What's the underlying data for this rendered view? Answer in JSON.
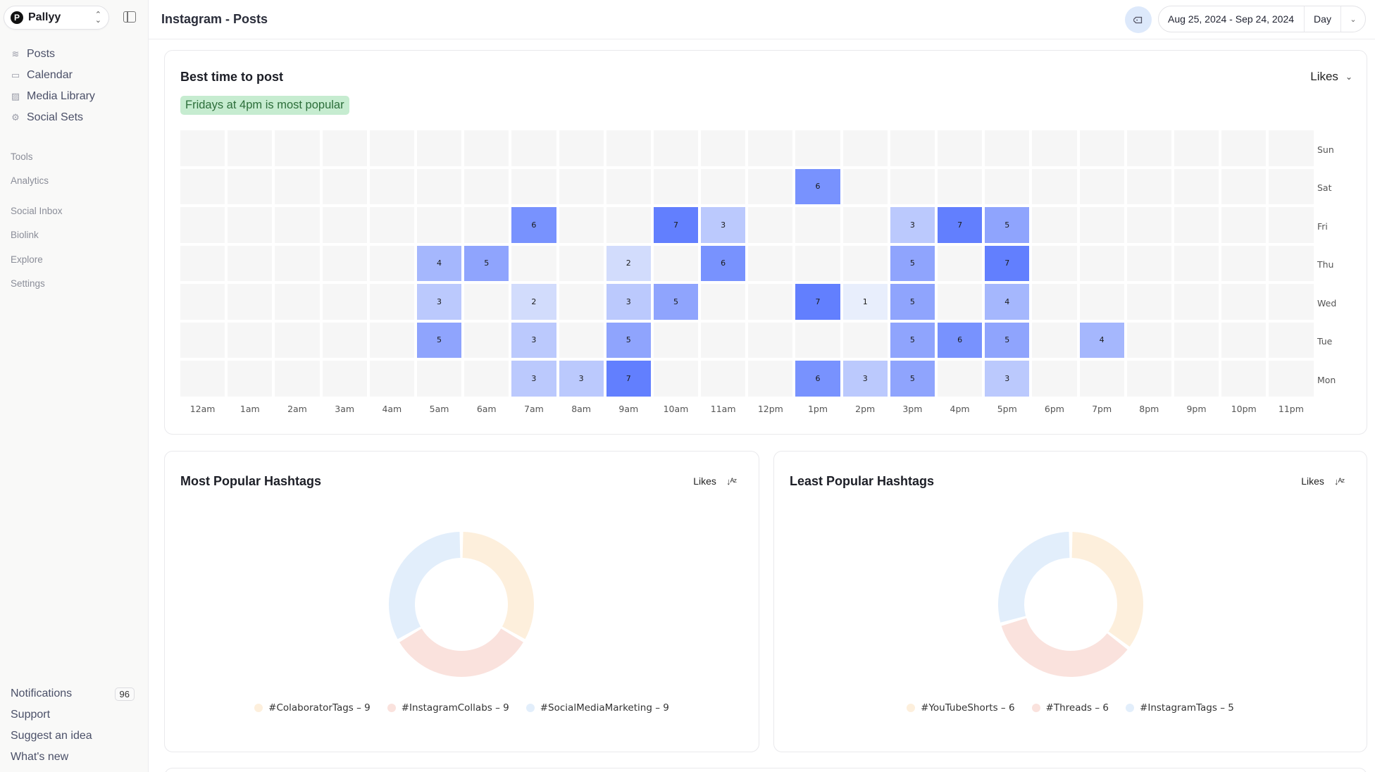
{
  "sidebar": {
    "workspace": {
      "logo": "P",
      "name": "Pallyy"
    },
    "main_nav": [
      {
        "label": "Posts",
        "icon": "database-icon",
        "glyph": "≋"
      },
      {
        "label": "Calendar",
        "icon": "calendar-icon",
        "glyph": "▭"
      },
      {
        "label": "Media Library",
        "icon": "image-icon",
        "glyph": "▨"
      },
      {
        "label": "Social Sets",
        "icon": "gear-icon",
        "glyph": "⚙"
      }
    ],
    "sections": [
      "Tools",
      "Analytics",
      "Social Inbox",
      "Biolink",
      "Explore",
      "Settings"
    ],
    "bottom": {
      "notifications": {
        "label": "Notifications",
        "count": "96"
      },
      "support": "Support",
      "suggest": "Suggest an idea",
      "whats_new": "What's new"
    }
  },
  "header": {
    "title": "Instagram - Posts",
    "date_range": "Aug 25, 2024 - Sep 24, 2024",
    "granularity": "Day"
  },
  "best_time": {
    "title": "Best time to post",
    "metric": "Likes",
    "highlight": "Fridays at 4pm is most popular"
  },
  "chart_data": [
    {
      "type": "heatmap",
      "title": "Best time to post",
      "metric": "Likes",
      "x": [
        "12am",
        "1am",
        "2am",
        "3am",
        "4am",
        "5am",
        "6am",
        "7am",
        "8am",
        "9am",
        "10am",
        "11am",
        "12pm",
        "1pm",
        "2pm",
        "3pm",
        "4pm",
        "5pm",
        "6pm",
        "7pm",
        "8pm",
        "9pm",
        "10pm",
        "11pm"
      ],
      "y": [
        "Sun",
        "Sat",
        "Fri",
        "Thu",
        "Wed",
        "Tue",
        "Mon"
      ],
      "values": [
        [
          null,
          null,
          null,
          null,
          null,
          null,
          null,
          null,
          null,
          null,
          null,
          null,
          null,
          null,
          null,
          null,
          null,
          null,
          null,
          null,
          null,
          null,
          null,
          null
        ],
        [
          null,
          null,
          null,
          null,
          null,
          null,
          null,
          null,
          null,
          null,
          null,
          null,
          null,
          6,
          null,
          null,
          null,
          null,
          null,
          null,
          null,
          null,
          null,
          null
        ],
        [
          null,
          null,
          null,
          null,
          null,
          null,
          null,
          6,
          null,
          null,
          7,
          3,
          null,
          null,
          null,
          3,
          7,
          5,
          null,
          null,
          null,
          null,
          null,
          null
        ],
        [
          null,
          null,
          null,
          null,
          null,
          4,
          5,
          null,
          null,
          2,
          null,
          6,
          null,
          null,
          null,
          5,
          null,
          7,
          null,
          null,
          null,
          null,
          null,
          null
        ],
        [
          null,
          null,
          null,
          null,
          null,
          3,
          null,
          2,
          null,
          3,
          5,
          null,
          null,
          7,
          1,
          5,
          null,
          4,
          null,
          null,
          null,
          null,
          null,
          null
        ],
        [
          null,
          null,
          null,
          null,
          null,
          5,
          null,
          3,
          null,
          5,
          null,
          null,
          null,
          null,
          null,
          5,
          6,
          5,
          null,
          4,
          null,
          null,
          null,
          null
        ],
        [
          null,
          null,
          null,
          null,
          null,
          null,
          null,
          3,
          3,
          7,
          null,
          null,
          null,
          6,
          3,
          5,
          null,
          3,
          null,
          null,
          null,
          null,
          null,
          null
        ]
      ],
      "color_scale": {
        "min_color": "#e8eefc",
        "max_color": "#627ffe",
        "empty_color": "#f6f6f6"
      },
      "annotation": "Fridays at 4pm is most popular"
    },
    {
      "type": "pie",
      "title": "Most Popular Hashtags",
      "metric": "Likes",
      "labels": [
        "#ColaboratorTags",
        "#InstagramCollabs",
        "#SocialMediaMarketing"
      ],
      "values": [
        9,
        9,
        9
      ],
      "colors": [
        "#fdefdc",
        "#fae2dd",
        "#e2eefb"
      ],
      "donut": true,
      "legend_position": "bottom"
    },
    {
      "type": "pie",
      "title": "Least Popular Hashtags",
      "metric": "Likes",
      "labels": [
        "#YouTubeShorts",
        "#Threads",
        "#InstagramTags"
      ],
      "values": [
        6,
        6,
        5
      ],
      "colors": [
        "#fdefdc",
        "#fae2dd",
        "#e2eefb"
      ],
      "donut": true,
      "legend_position": "bottom"
    }
  ],
  "most_popular": {
    "title": "Most Popular Hashtags",
    "sort_label": "Likes",
    "legend": [
      "#ColaboratorTags – 9",
      "#InstagramCollabs – 9",
      "#SocialMediaMarketing – 9"
    ]
  },
  "least_popular": {
    "title": "Least Popular Hashtags",
    "sort_label": "Likes",
    "legend": [
      "#YouTubeShorts – 6",
      "#Threads – 6",
      "#InstagramTags – 5"
    ]
  }
}
